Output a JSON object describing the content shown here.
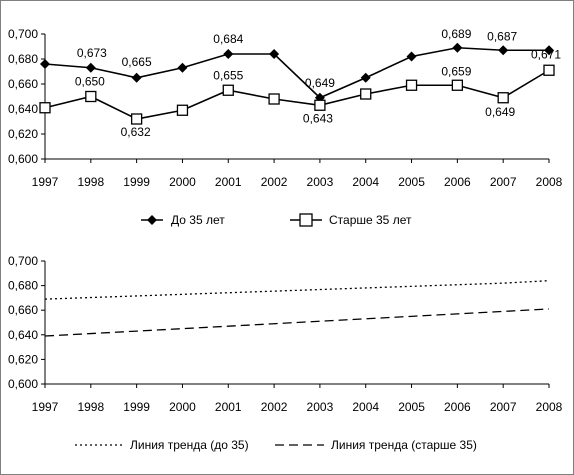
{
  "chart_data": [
    {
      "type": "line",
      "x": [
        "1997",
        "1998",
        "1999",
        "2000",
        "2001",
        "2002",
        "2003",
        "2004",
        "2005",
        "2006",
        "2007",
        "2008"
      ],
      "ylim": [
        0.6,
        0.7
      ],
      "yticks": [
        "0,600",
        "0,620",
        "0,640",
        "0,660",
        "0,680",
        "0,700"
      ],
      "grid": false,
      "legend": "bottom",
      "series": [
        {
          "name": "До 35 лет",
          "marker": "filled-diamond",
          "color": "#000000",
          "values": [
            0.676,
            0.673,
            0.665,
            0.673,
            0.684,
            0.684,
            0.649,
            0.665,
            0.682,
            0.689,
            0.687,
            0.687
          ],
          "labels": [
            "",
            "0,673",
            "0,665",
            "",
            "0,684",
            "",
            "0,649",
            "",
            "",
            "0,689",
            "0,687",
            ""
          ]
        },
        {
          "name": "Старше 35 лет",
          "marker": "open-square",
          "color": "#000000",
          "values": [
            0.641,
            0.65,
            0.632,
            0.639,
            0.655,
            0.648,
            0.643,
            0.652,
            0.659,
            0.659,
            0.649,
            0.671
          ],
          "labels": [
            "",
            "0,650",
            "0,632",
            "",
            "0,655",
            "",
            "0,643",
            "",
            "",
            "0,659",
            "0,649",
            "0,671"
          ]
        }
      ]
    },
    {
      "type": "line",
      "x": [
        "1997",
        "1998",
        "1999",
        "2000",
        "2001",
        "2002",
        "2003",
        "2004",
        "2005",
        "2006",
        "2007",
        "2008"
      ],
      "ylim": [
        0.6,
        0.7
      ],
      "yticks": [
        "0,600",
        "0,620",
        "0,640",
        "0,660",
        "0,680",
        "0,700"
      ],
      "grid": false,
      "legend": "bottom",
      "series": [
        {
          "name": "Линия тренда (до 35)",
          "style": "dotted",
          "color": "#000000",
          "values": [
            0.669,
            0.6703,
            0.6716,
            0.6729,
            0.6742,
            0.6755,
            0.6768,
            0.6781,
            0.6794,
            0.6807,
            0.682,
            0.684
          ]
        },
        {
          "name": "Линия тренда (старше 35)",
          "style": "dashed",
          "color": "#000000",
          "values": [
            0.639,
            0.641,
            0.643,
            0.645,
            0.647,
            0.649,
            0.651,
            0.653,
            0.655,
            0.657,
            0.659,
            0.661
          ]
        }
      ]
    }
  ]
}
